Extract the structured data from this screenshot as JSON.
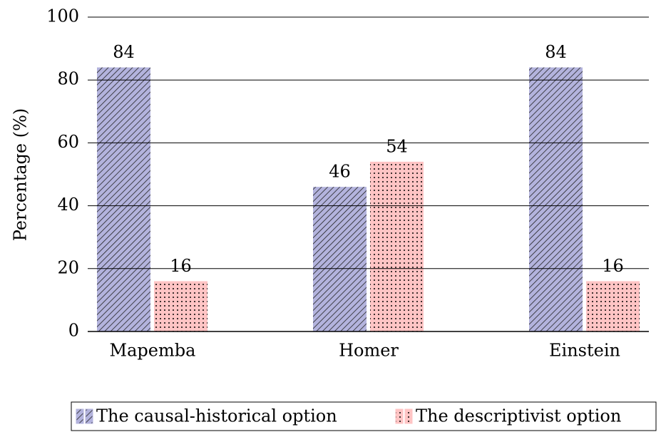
{
  "chart_data": {
    "type": "bar",
    "y_label": "Percentage (%)",
    "categories": [
      "Mapemba",
      "Homer",
      "Einstein"
    ],
    "series": [
      {
        "name": "The causal-historical option",
        "color": "#b3b3dd",
        "values": [
          84,
          46,
          84
        ]
      },
      {
        "name": "The descriptivist option",
        "color": "#ffc4c4",
        "values": [
          16,
          54,
          16
        ]
      }
    ],
    "ylim": [
      0,
      100
    ],
    "yticks": [
      0,
      20,
      40,
      60,
      80,
      100
    ],
    "grid": true,
    "legend": "bottom"
  }
}
